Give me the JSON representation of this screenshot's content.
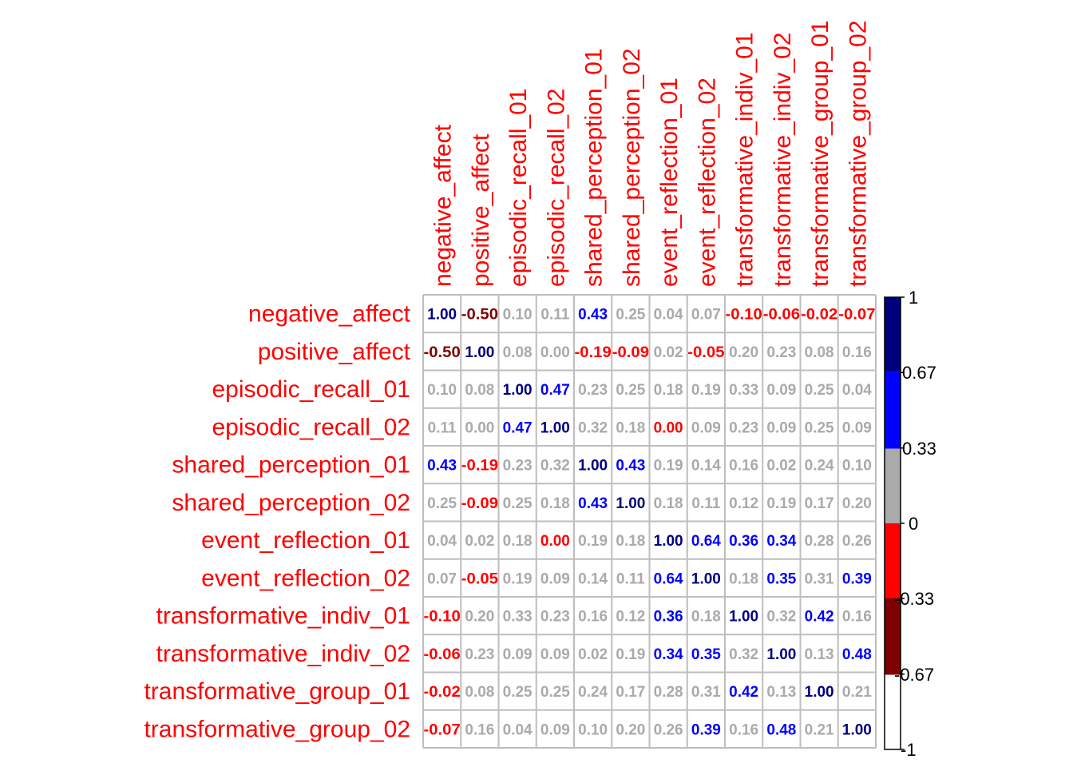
{
  "chart_data": {
    "type": "heatmap",
    "variables": [
      "negative_affect",
      "positive_affect",
      "episodic_recall_01",
      "episodic_recall_02",
      "shared_perception_01",
      "shared_perception_02",
      "event_reflection_01",
      "event_reflection_02",
      "transformative_indiv_01",
      "transformative_indiv_02",
      "transformative_group_01",
      "transformative_group_02"
    ],
    "matrix": [
      [
        1.0,
        -0.5,
        0.1,
        0.11,
        0.43,
        0.25,
        0.04,
        0.07,
        -0.1,
        -0.06,
        -0.02,
        -0.07
      ],
      [
        -0.5,
        1.0,
        0.08,
        0.0,
        -0.19,
        -0.09,
        0.02,
        -0.05,
        0.2,
        0.23,
        0.08,
        0.16
      ],
      [
        0.1,
        0.08,
        1.0,
        0.47,
        0.23,
        0.25,
        0.18,
        0.19,
        0.33,
        0.09,
        0.25,
        0.04
      ],
      [
        0.11,
        0.0,
        0.47,
        1.0,
        0.32,
        0.18,
        0.0,
        0.09,
        0.23,
        0.09,
        0.25,
        0.09
      ],
      [
        0.43,
        -0.19,
        0.23,
        0.32,
        1.0,
        0.43,
        0.19,
        0.14,
        0.16,
        0.02,
        0.24,
        0.1
      ],
      [
        0.25,
        -0.09,
        0.25,
        0.18,
        0.43,
        1.0,
        0.18,
        0.11,
        0.12,
        0.19,
        0.17,
        0.2
      ],
      [
        0.04,
        0.02,
        0.18,
        0.0,
        0.19,
        0.18,
        1.0,
        0.64,
        0.36,
        0.34,
        0.28,
        0.26
      ],
      [
        0.07,
        -0.05,
        0.19,
        0.09,
        0.14,
        0.11,
        0.64,
        1.0,
        0.18,
        0.35,
        0.31,
        0.39
      ],
      [
        -0.1,
        0.2,
        0.33,
        0.23,
        0.16,
        0.12,
        0.36,
        0.18,
        1.0,
        0.32,
        0.42,
        0.16
      ],
      [
        -0.06,
        0.23,
        0.09,
        0.09,
        0.02,
        0.19,
        0.34,
        0.35,
        0.32,
        1.0,
        0.13,
        0.48
      ],
      [
        -0.02,
        0.08,
        0.25,
        0.25,
        0.24,
        0.17,
        0.28,
        0.31,
        0.42,
        0.13,
        1.0,
        0.21
      ],
      [
        -0.07,
        0.16,
        0.04,
        0.09,
        0.1,
        0.2,
        0.26,
        0.39,
        0.16,
        0.48,
        0.21,
        1.0
      ]
    ],
    "display_values": [
      [
        "1.00",
        "-0.50",
        "0.10",
        "0.11",
        "0.43",
        "0.25",
        "0.04",
        "0.07",
        "-0.10",
        "-0.06",
        "-0.02",
        "-0.07"
      ],
      [
        "-0.50",
        "1.00",
        "0.08",
        "0.00",
        "-0.19",
        "-0.09",
        "0.02",
        "-0.05",
        "0.20",
        "0.23",
        "0.08",
        "0.16"
      ],
      [
        "0.10",
        "0.08",
        "1.00",
        "0.47",
        "0.23",
        "0.25",
        "0.18",
        "0.19",
        "0.33",
        "0.09",
        "0.25",
        "0.04"
      ],
      [
        "0.11",
        "0.00",
        "0.47",
        "1.00",
        "0.32",
        "0.18",
        "0.00",
        "0.09",
        "0.23",
        "0.09",
        "0.25",
        "0.09"
      ],
      [
        "0.43",
        "-0.19",
        "0.23",
        "0.32",
        "1.00",
        "0.43",
        "0.19",
        "0.14",
        "0.16",
        "0.02",
        "0.24",
        "0.10"
      ],
      [
        "0.25",
        "-0.09",
        "0.25",
        "0.18",
        "0.43",
        "1.00",
        "0.18",
        "0.11",
        "0.12",
        "0.19",
        "0.17",
        "0.20"
      ],
      [
        "0.04",
        "0.02",
        "0.18",
        "0.00",
        "0.19",
        "0.18",
        "1.00",
        "0.64",
        "0.36",
        "0.34",
        "0.28",
        "0.26"
      ],
      [
        "0.07",
        "-0.05",
        "0.19",
        "0.09",
        "0.14",
        "0.11",
        "0.64",
        "1.00",
        "0.18",
        "0.35",
        "0.31",
        "0.39"
      ],
      [
        "-0.10",
        "0.20",
        "0.33",
        "0.23",
        "0.16",
        "0.12",
        "0.36",
        "0.18",
        "1.00",
        "0.32",
        "0.42",
        "0.16"
      ],
      [
        "-0.06",
        "0.23",
        "0.09",
        "0.09",
        "0.02",
        "0.19",
        "0.34",
        "0.35",
        "0.32",
        "1.00",
        "0.13",
        "0.48"
      ],
      [
        "-0.02",
        "0.08",
        "0.25",
        "0.25",
        "0.24",
        "0.17",
        "0.28",
        "0.31",
        "0.42",
        "0.13",
        "1.00",
        "0.21"
      ],
      [
        "-0.07",
        "0.16",
        "0.04",
        "0.09",
        "0.10",
        "0.20",
        "0.26",
        "0.39",
        "0.16",
        "0.48",
        "0.21",
        "1.00"
      ]
    ],
    "legend": {
      "type": "colorbar",
      "placement": "right",
      "range": [
        -1,
        1
      ],
      "tick_labels": [
        "1",
        "0.67",
        "0.33",
        "0",
        "-0.33",
        "-0.67",
        "-1"
      ],
      "bins": [
        {
          "from": 0.67,
          "to": 1,
          "color": "#00007f"
        },
        {
          "from": 0.33,
          "to": 0.67,
          "color": "#0000ff"
        },
        {
          "from": 0,
          "to": 0.33,
          "color": "#aaaaaa"
        },
        {
          "from": -0.33,
          "to": 0,
          "color": "#ff0000"
        },
        {
          "from": -0.67,
          "to": -0.33,
          "color": "#7f0000"
        },
        {
          "from": -1,
          "to": -0.67,
          "color": "#ffffff"
        }
      ]
    },
    "label_color": "#ff0000",
    "grid_color": "#bebebe"
  }
}
